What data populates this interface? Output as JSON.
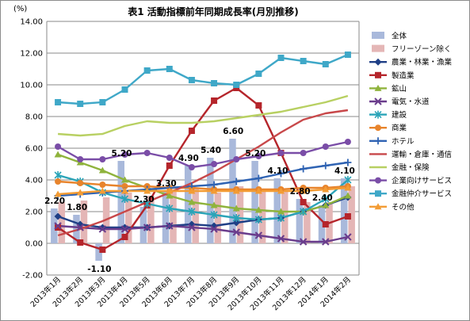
{
  "chart_data": {
    "type": "bar+line",
    "title": "表1 活動指標前年同期成長率(月別推移)",
    "unit_label": "(%)",
    "ylim": [
      -2,
      14
    ],
    "yticks": [
      "14.00",
      "12.00",
      "10.00",
      "8.00",
      "6.00",
      "4.00",
      "2.00",
      "0.00",
      "-2.00"
    ],
    "ytick_values": [
      14,
      12,
      10,
      8,
      6,
      4,
      2,
      0,
      -2
    ],
    "grid": true,
    "legend_position": "right",
    "categories": [
      "2013年1月",
      "2013年2月",
      "2013年3月",
      "2013年4月",
      "2013年5月",
      "2013年6月",
      "2013年7月",
      "2013年8月",
      "2013年9月",
      "2013年10月",
      "2013年11月",
      "2013年12月",
      "2014年1月",
      "2014年2月"
    ],
    "bar_series": [
      {
        "name": "全体",
        "color": "#a9b9db",
        "values": [
          2.2,
          1.8,
          -1.1,
          5.2,
          2.3,
          3.3,
          4.9,
          5.4,
          6.6,
          5.2,
          4.1,
          2.8,
          2.4,
          4.1
        ]
      },
      {
        "name": "フリーゾーン除く",
        "color": "#e4b6b6",
        "values": [
          2.6,
          2.7,
          2.9,
          3.2,
          3.0,
          3.4,
          3.5,
          3.2,
          3.6,
          3.3,
          3.3,
          2.6,
          2.6,
          3.6
        ]
      }
    ],
    "data_labels": [
      "2.20",
      "1.80",
      "-1.10",
      "5.20",
      "2.30",
      "3.30",
      "4.90",
      "5.40",
      "6.60",
      "5.20",
      "4.10",
      "2.80",
      "2.40",
      "4.10"
    ],
    "line_series": [
      {
        "name": "農業・林業・漁業",
        "color": "#1f3f86",
        "marker": "diamond",
        "values": [
          1.7,
          1.2,
          1.0,
          1.0,
          1.0,
          1.1,
          1.2,
          1.1,
          1.3,
          1.5,
          1.6,
          2.0,
          2.4,
          2.9
        ]
      },
      {
        "name": "製造業",
        "color": "#b5252b",
        "marker": "square",
        "values": [
          1.0,
          0.05,
          -0.4,
          0.4,
          2.4,
          4.9,
          7.1,
          9.0,
          9.8,
          8.7,
          5.7,
          2.6,
          1.2,
          1.7
        ]
      },
      {
        "name": "鉱山",
        "color": "#8fb33c",
        "marker": "triangle",
        "values": [
          5.6,
          5.1,
          4.6,
          4.0,
          3.5,
          3.0,
          2.6,
          2.4,
          2.2,
          2.1,
          2.0,
          2.0,
          2.4,
          3.0
        ]
      },
      {
        "name": "電気・水道",
        "color": "#6a3c8c",
        "marker": "x",
        "values": [
          1.1,
          1.0,
          0.9,
          0.9,
          1.0,
          1.1,
          1.0,
          0.9,
          0.7,
          0.5,
          0.3,
          0.1,
          0.1,
          0.4
        ]
      },
      {
        "name": "建設",
        "color": "#2aa4b8",
        "marker": "asterisk",
        "values": [
          4.3,
          3.9,
          3.2,
          2.8,
          2.5,
          2.2,
          2.0,
          1.8,
          1.6,
          1.5,
          1.6,
          2.0,
          2.8,
          4.0
        ]
      },
      {
        "name": "商業",
        "color": "#e8842c",
        "marker": "circle",
        "values": [
          3.9,
          3.8,
          3.7,
          3.6,
          3.6,
          3.5,
          3.5,
          3.4,
          3.4,
          3.4,
          3.4,
          3.5,
          3.5,
          3.6
        ]
      },
      {
        "name": "ホテル",
        "color": "#2f63b3",
        "marker": "plus",
        "values": [
          3.0,
          3.1,
          3.2,
          3.3,
          3.4,
          3.5,
          3.6,
          3.7,
          3.9,
          4.1,
          4.4,
          4.7,
          4.9,
          5.1
        ]
      },
      {
        "name": "運輸・倉庫・通信",
        "color": "#c8484a",
        "marker": "none",
        "values": [
          0.5,
          0.9,
          1.4,
          2.0,
          2.6,
          3.2,
          3.8,
          4.5,
          5.3,
          6.1,
          7.0,
          7.8,
          8.2,
          8.4
        ]
      },
      {
        "name": "金融・保険",
        "color": "#b8d062",
        "marker": "none",
        "values": [
          6.9,
          6.8,
          6.9,
          7.4,
          7.7,
          7.6,
          7.6,
          7.7,
          7.9,
          8.1,
          8.3,
          8.6,
          8.9,
          9.3
        ]
      },
      {
        "name": "企業向けサービス",
        "color": "#7a4da7",
        "marker": "circle",
        "values": [
          6.1,
          5.3,
          5.3,
          5.6,
          5.7,
          5.4,
          4.8,
          5.0,
          5.3,
          5.5,
          5.7,
          5.7,
          6.1,
          6.4
        ]
      },
      {
        "name": "金融仲介サービス",
        "color": "#3fa8c8",
        "marker": "square",
        "values": [
          8.9,
          8.8,
          8.9,
          9.7,
          10.9,
          11.0,
          10.3,
          10.1,
          10.0,
          10.7,
          11.7,
          11.5,
          11.3,
          11.9
        ]
      },
      {
        "name": "その他",
        "color": "#f39c34",
        "marker": "triangle",
        "values": [
          3.1,
          3.2,
          3.3,
          3.3,
          3.3,
          3.3,
          3.3,
          3.3,
          3.3,
          3.3,
          3.3,
          3.3,
          3.4,
          3.5
        ]
      }
    ]
  }
}
